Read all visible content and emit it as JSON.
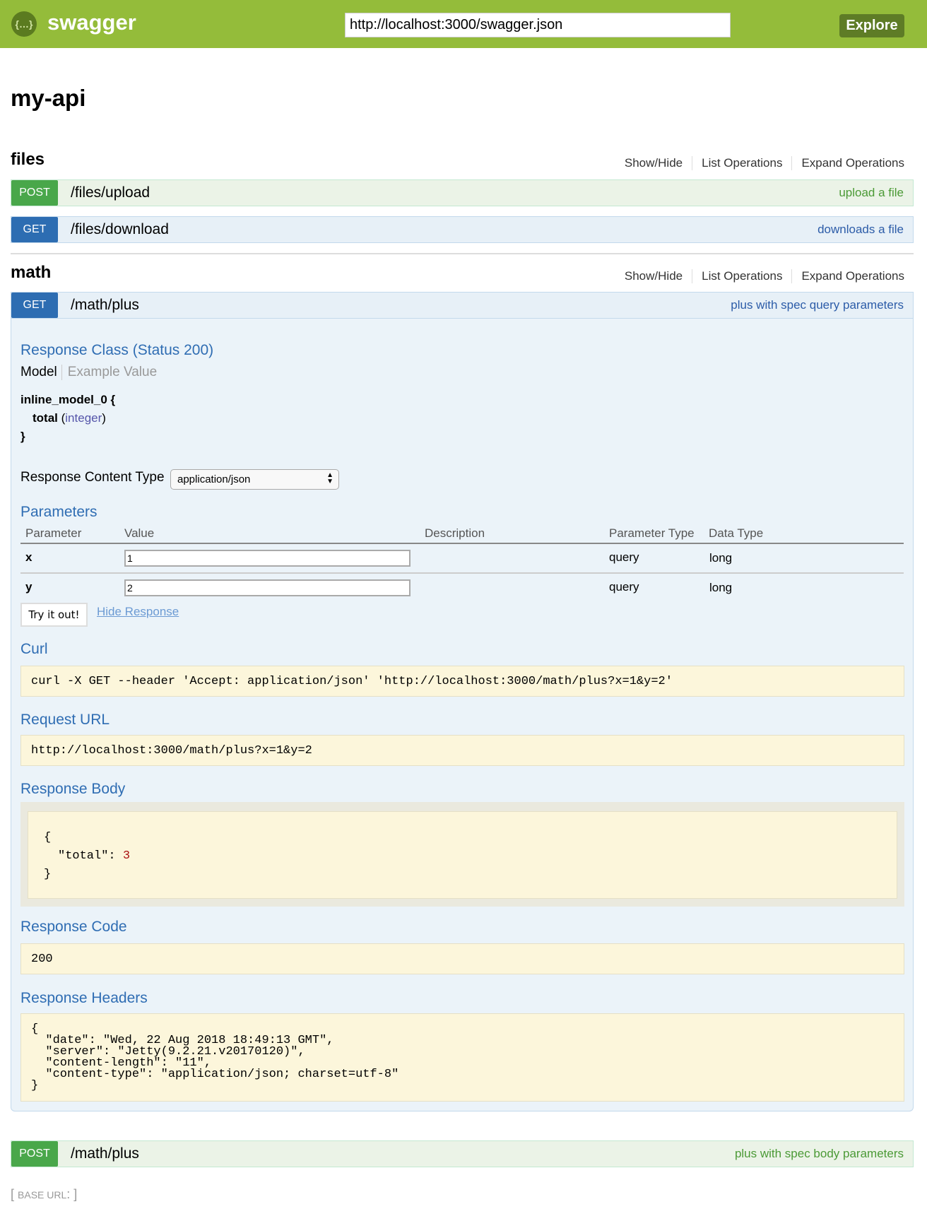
{
  "header": {
    "brand": "swagger",
    "logo_icon": "swagger-logo-icon",
    "url_value": "http://localhost:3000/swagger.json",
    "explore_label": "Explore",
    "color": "#94bc3a"
  },
  "api_title": "my-api",
  "sections": [
    {
      "name": "files",
      "links": [
        "Show/Hide",
        "List Operations",
        "Expand Operations"
      ],
      "ops": [
        {
          "method": "POST",
          "path": "/files/upload",
          "summary": "upload a file"
        },
        {
          "method": "GET",
          "path": "/files/download",
          "summary": "downloads a file"
        }
      ]
    },
    {
      "name": "math",
      "links": [
        "Show/Hide",
        "List Operations",
        "Expand Operations"
      ],
      "ops": [
        {
          "method": "GET",
          "path": "/math/plus",
          "summary": "plus with spec query parameters"
        },
        {
          "method": "POST",
          "path": "/math/plus",
          "summary": "plus with spec body parameters"
        }
      ]
    }
  ],
  "expanded": {
    "response_class_title": "Response Class (Status 200)",
    "model_tab": "Model",
    "example_tab": "Example Value",
    "model_name": "inline_model_0 {",
    "model_field": "total",
    "model_type": "integer",
    "model_close": "}",
    "content_type_label": "Response Content Type",
    "content_type_value": "application/json",
    "parameters_title": "Parameters",
    "param_headers": [
      "Parameter",
      "Value",
      "Description",
      "Parameter Type",
      "Data Type"
    ],
    "params": [
      {
        "name": "x",
        "value": "1",
        "description": "",
        "ptype": "query",
        "dtype": "long"
      },
      {
        "name": "y",
        "value": "2",
        "description": "",
        "ptype": "query",
        "dtype": "long"
      }
    ],
    "try_label": "Try it out!",
    "hide_label": "Hide Response",
    "curl_title": "Curl",
    "curl": "curl -X GET --header 'Accept: application/json' 'http://localhost:3000/math/plus?x=1&y=2'",
    "request_url_title": "Request URL",
    "request_url": "http://localhost:3000/math/plus?x=1&y=2",
    "response_body_title": "Response Body",
    "body_open": "{",
    "body_key": "\"total\": ",
    "body_value": "3",
    "body_close": "}",
    "response_code_title": "Response Code",
    "response_code": "200",
    "response_headers_title": "Response Headers",
    "headers_lines": [
      "{",
      "  \"date\": \"Wed, 22 Aug 2018 18:49:13 GMT\",",
      "  \"server\": \"Jetty(9.2.21.v20170120)\",",
      "  \"content-length\": \"11\",",
      "  \"content-type\": \"application/json; charset=utf-8\"",
      "}"
    ]
  },
  "base_url": {
    "open": "[ ",
    "label": "BASE URL",
    "colon": ": ",
    "close": "]"
  }
}
